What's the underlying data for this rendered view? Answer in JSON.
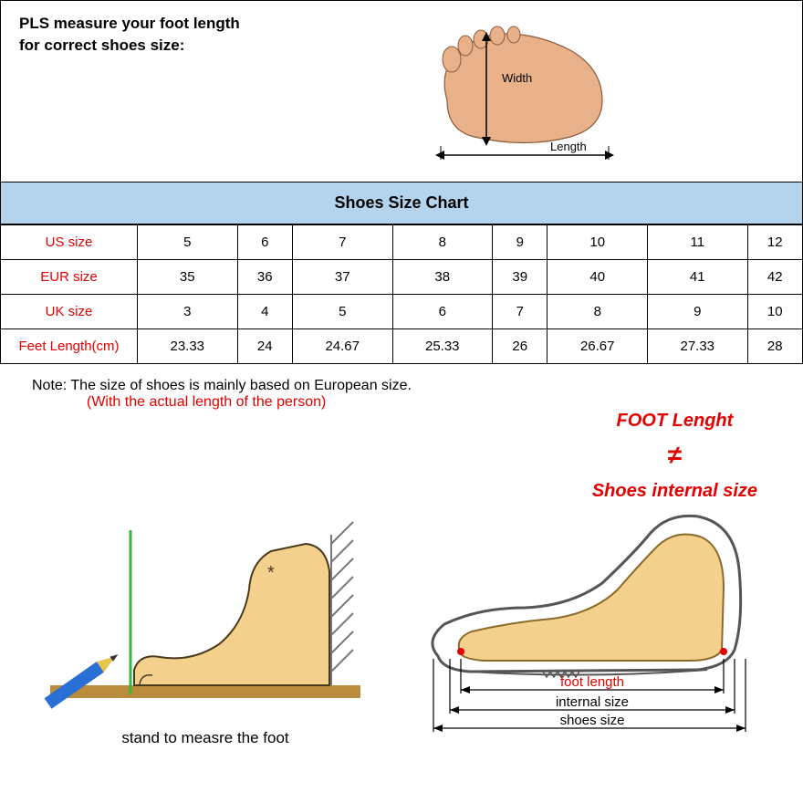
{
  "banner": {
    "line1": "PLS measure your foot length",
    "line2": "for correct shoes size:",
    "width_label": "Width",
    "length_label": "Length"
  },
  "chart": {
    "title": "Shoes Size Chart",
    "rows": [
      {
        "label": "US size",
        "values": [
          "5",
          "6",
          "7",
          "8",
          "9",
          "10",
          "11",
          "12"
        ]
      },
      {
        "label": "EUR size",
        "values": [
          "35",
          "36",
          "37",
          "38",
          "39",
          "40",
          "41",
          "42"
        ]
      },
      {
        "label": "UK size",
        "values": [
          "3",
          "4",
          "5",
          "6",
          "7",
          "8",
          "9",
          "10"
        ]
      },
      {
        "label": "Feet Length(cm)",
        "values": [
          "23.33",
          "24",
          "24.67",
          "25.33",
          "26",
          "26.67",
          "27.33",
          "28"
        ]
      }
    ],
    "label_color": "#e30000",
    "header_bg": "#b4d4ed",
    "border_color": "#000000",
    "cell_fontsize": 15
  },
  "note": {
    "line1": "Note: The size of shoes is mainly based on European size.",
    "line2": "(With the actual length of the person)"
  },
  "compare": {
    "top": "FOOT Lenght",
    "symbol": "≠",
    "bottom": "Shoes internal size",
    "color": "#e30000"
  },
  "diagram1": {
    "caption": "stand to measre the foot",
    "foot_fill": "#f3d18d",
    "wall_hatch": "#888888",
    "floor": "#b98b3a",
    "pencil_blue": "#2a6fd6",
    "pencil_yellow": "#e6c54a",
    "guide_green": "#2bbf3a"
  },
  "diagram2": {
    "foot_label": "foot length",
    "internal_label": "internal size",
    "shoes_label": "shoes size",
    "foot_fill": "#f3d18d",
    "shoe_line": "#555555",
    "dim_color": "#000000",
    "red": "#e30000"
  }
}
